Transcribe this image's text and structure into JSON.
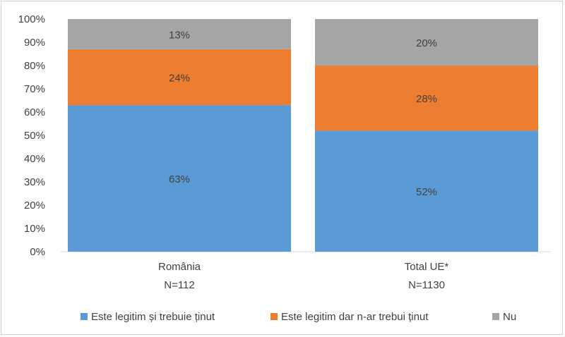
{
  "chart_data": {
    "type": "bar",
    "stacked": true,
    "categories": [
      "România",
      "Total UE*"
    ],
    "category_sublabels": [
      "N=112",
      "N=1130"
    ],
    "series": [
      {
        "name": "Este legitim și trebuie ținut",
        "values": [
          63,
          52
        ],
        "labels": [
          "63%",
          "52%"
        ],
        "color": "#5b9bd5"
      },
      {
        "name": "Este legitim dar n-ar trebui ținut",
        "values": [
          24,
          28
        ],
        "labels": [
          "24%",
          "28%"
        ],
        "color": "#ed7d31"
      },
      {
        "name": "Nu",
        "values": [
          13,
          20
        ],
        "labels": [
          "13%",
          "20%"
        ],
        "color": "#a5a5a5"
      }
    ],
    "ylim": [
      0,
      100
    ],
    "y_ticks": [
      "0%",
      "10%",
      "20%",
      "30%",
      "40%",
      "50%",
      "60%",
      "70%",
      "80%",
      "90%",
      "100%"
    ],
    "grid": false,
    "legend_position": "bottom",
    "colors": {
      "text": "#404040",
      "axis": "#d9d9d9",
      "frame": "#d0d0d0"
    }
  }
}
